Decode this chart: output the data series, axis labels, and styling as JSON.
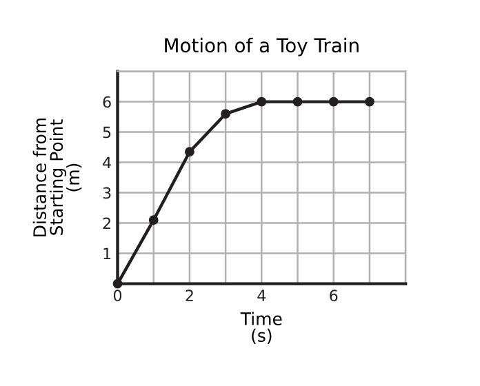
{
  "chart_data": {
    "type": "line",
    "title": "Motion of a Toy Train",
    "xlabel": "Time\n(s)",
    "ylabel": "Distance from\nStarting Point\n(m)",
    "x": [
      0,
      1,
      2,
      3,
      4,
      5,
      6,
      7
    ],
    "series": [
      {
        "color": "#231f20",
        "values": [
          0,
          2.1,
          4.35,
          5.6,
          6,
          6,
          6,
          6
        ]
      }
    ],
    "xlim": [
      0,
      8
    ],
    "ylim": [
      0,
      7
    ],
    "xticks": [
      0,
      {
        "value": 1,
        "label": null
      },
      2,
      {
        "value": 3,
        "label": null
      },
      4,
      {
        "value": 5,
        "label": null
      },
      6,
      {
        "value": 7,
        "label": null
      },
      {
        "value": 8,
        "label": null
      }
    ],
    "yticks": [
      {
        "value": 0,
        "label": null
      },
      1,
      2,
      3,
      4,
      5,
      6,
      {
        "value": 7,
        "label": null
      }
    ],
    "grid": true,
    "marker": "circle",
    "line_style": "solid"
  }
}
